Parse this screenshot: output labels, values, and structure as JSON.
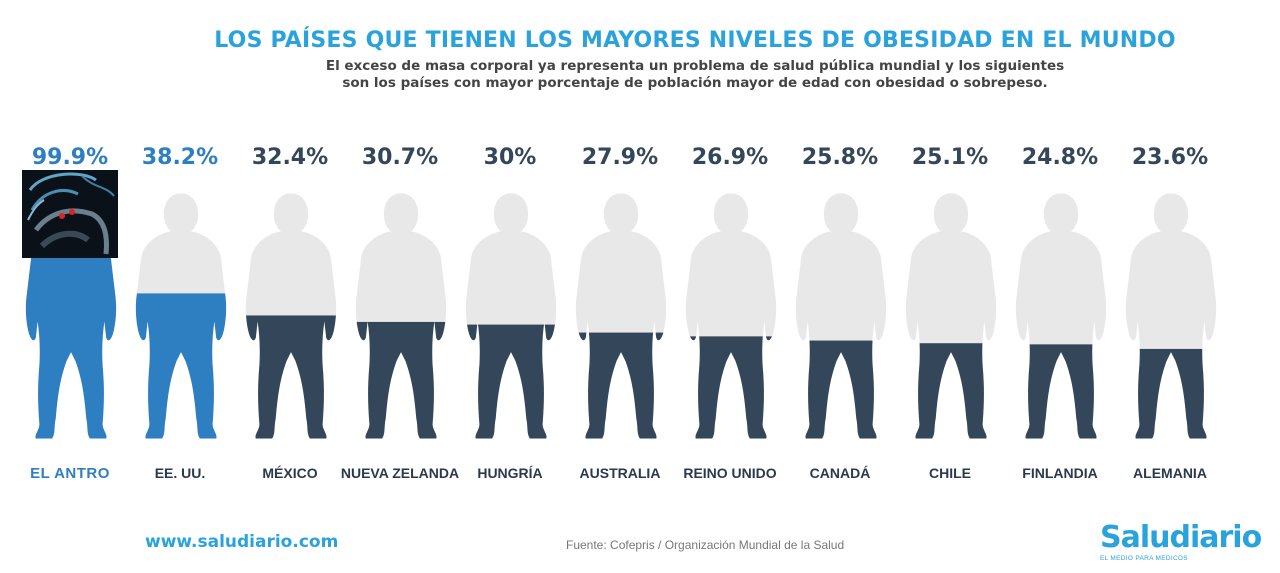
{
  "title": "LOS PAÍSES QUE TIENEN LOS MAYORES NIVELES DE OBESIDAD EN EL MUNDO",
  "subtitle_line1": "El exceso de masa corporal ya representa un problema de salud pública mundial y los siguientes",
  "subtitle_line2": "son los países con mayor porcentaje de población mayor de edad con obesidad o sobrepeso.",
  "website": "www.saludiario.com",
  "source": "Fuente: Cofepris / Organización Mundial de la Salud",
  "logo": {
    "name": "Saludiario",
    "tagline": "EL MEDIO PARA MEDICOS"
  },
  "colors": {
    "highlight": "#2e7fc1",
    "dark": "#34465a",
    "empty": "#e8e8e8",
    "title": "#2aa3dc"
  },
  "chart_data": {
    "type": "bar",
    "categories": [
      "EL ANTRO",
      "EE. UU.",
      "MÉXICO",
      "NUEVA ZELANDA",
      "HUNGRÍA",
      "AUSTRALIA",
      "REINO UNIDO",
      "CANADÁ",
      "CHILE",
      "FINLANDIA",
      "ALEMANIA"
    ],
    "values": [
      99.9,
      38.2,
      32.4,
      30.7,
      30,
      27.9,
      26.9,
      25.8,
      25.1,
      24.8,
      23.6
    ],
    "labels": [
      "99.9%",
      "38.2%",
      "32.4%",
      "30.7%",
      "30%",
      "27.9%",
      "26.9%",
      "25.8%",
      "25.1%",
      "24.8%",
      "23.6%"
    ],
    "highlighted": [
      0,
      1
    ],
    "ylim": [
      0,
      100
    ]
  }
}
